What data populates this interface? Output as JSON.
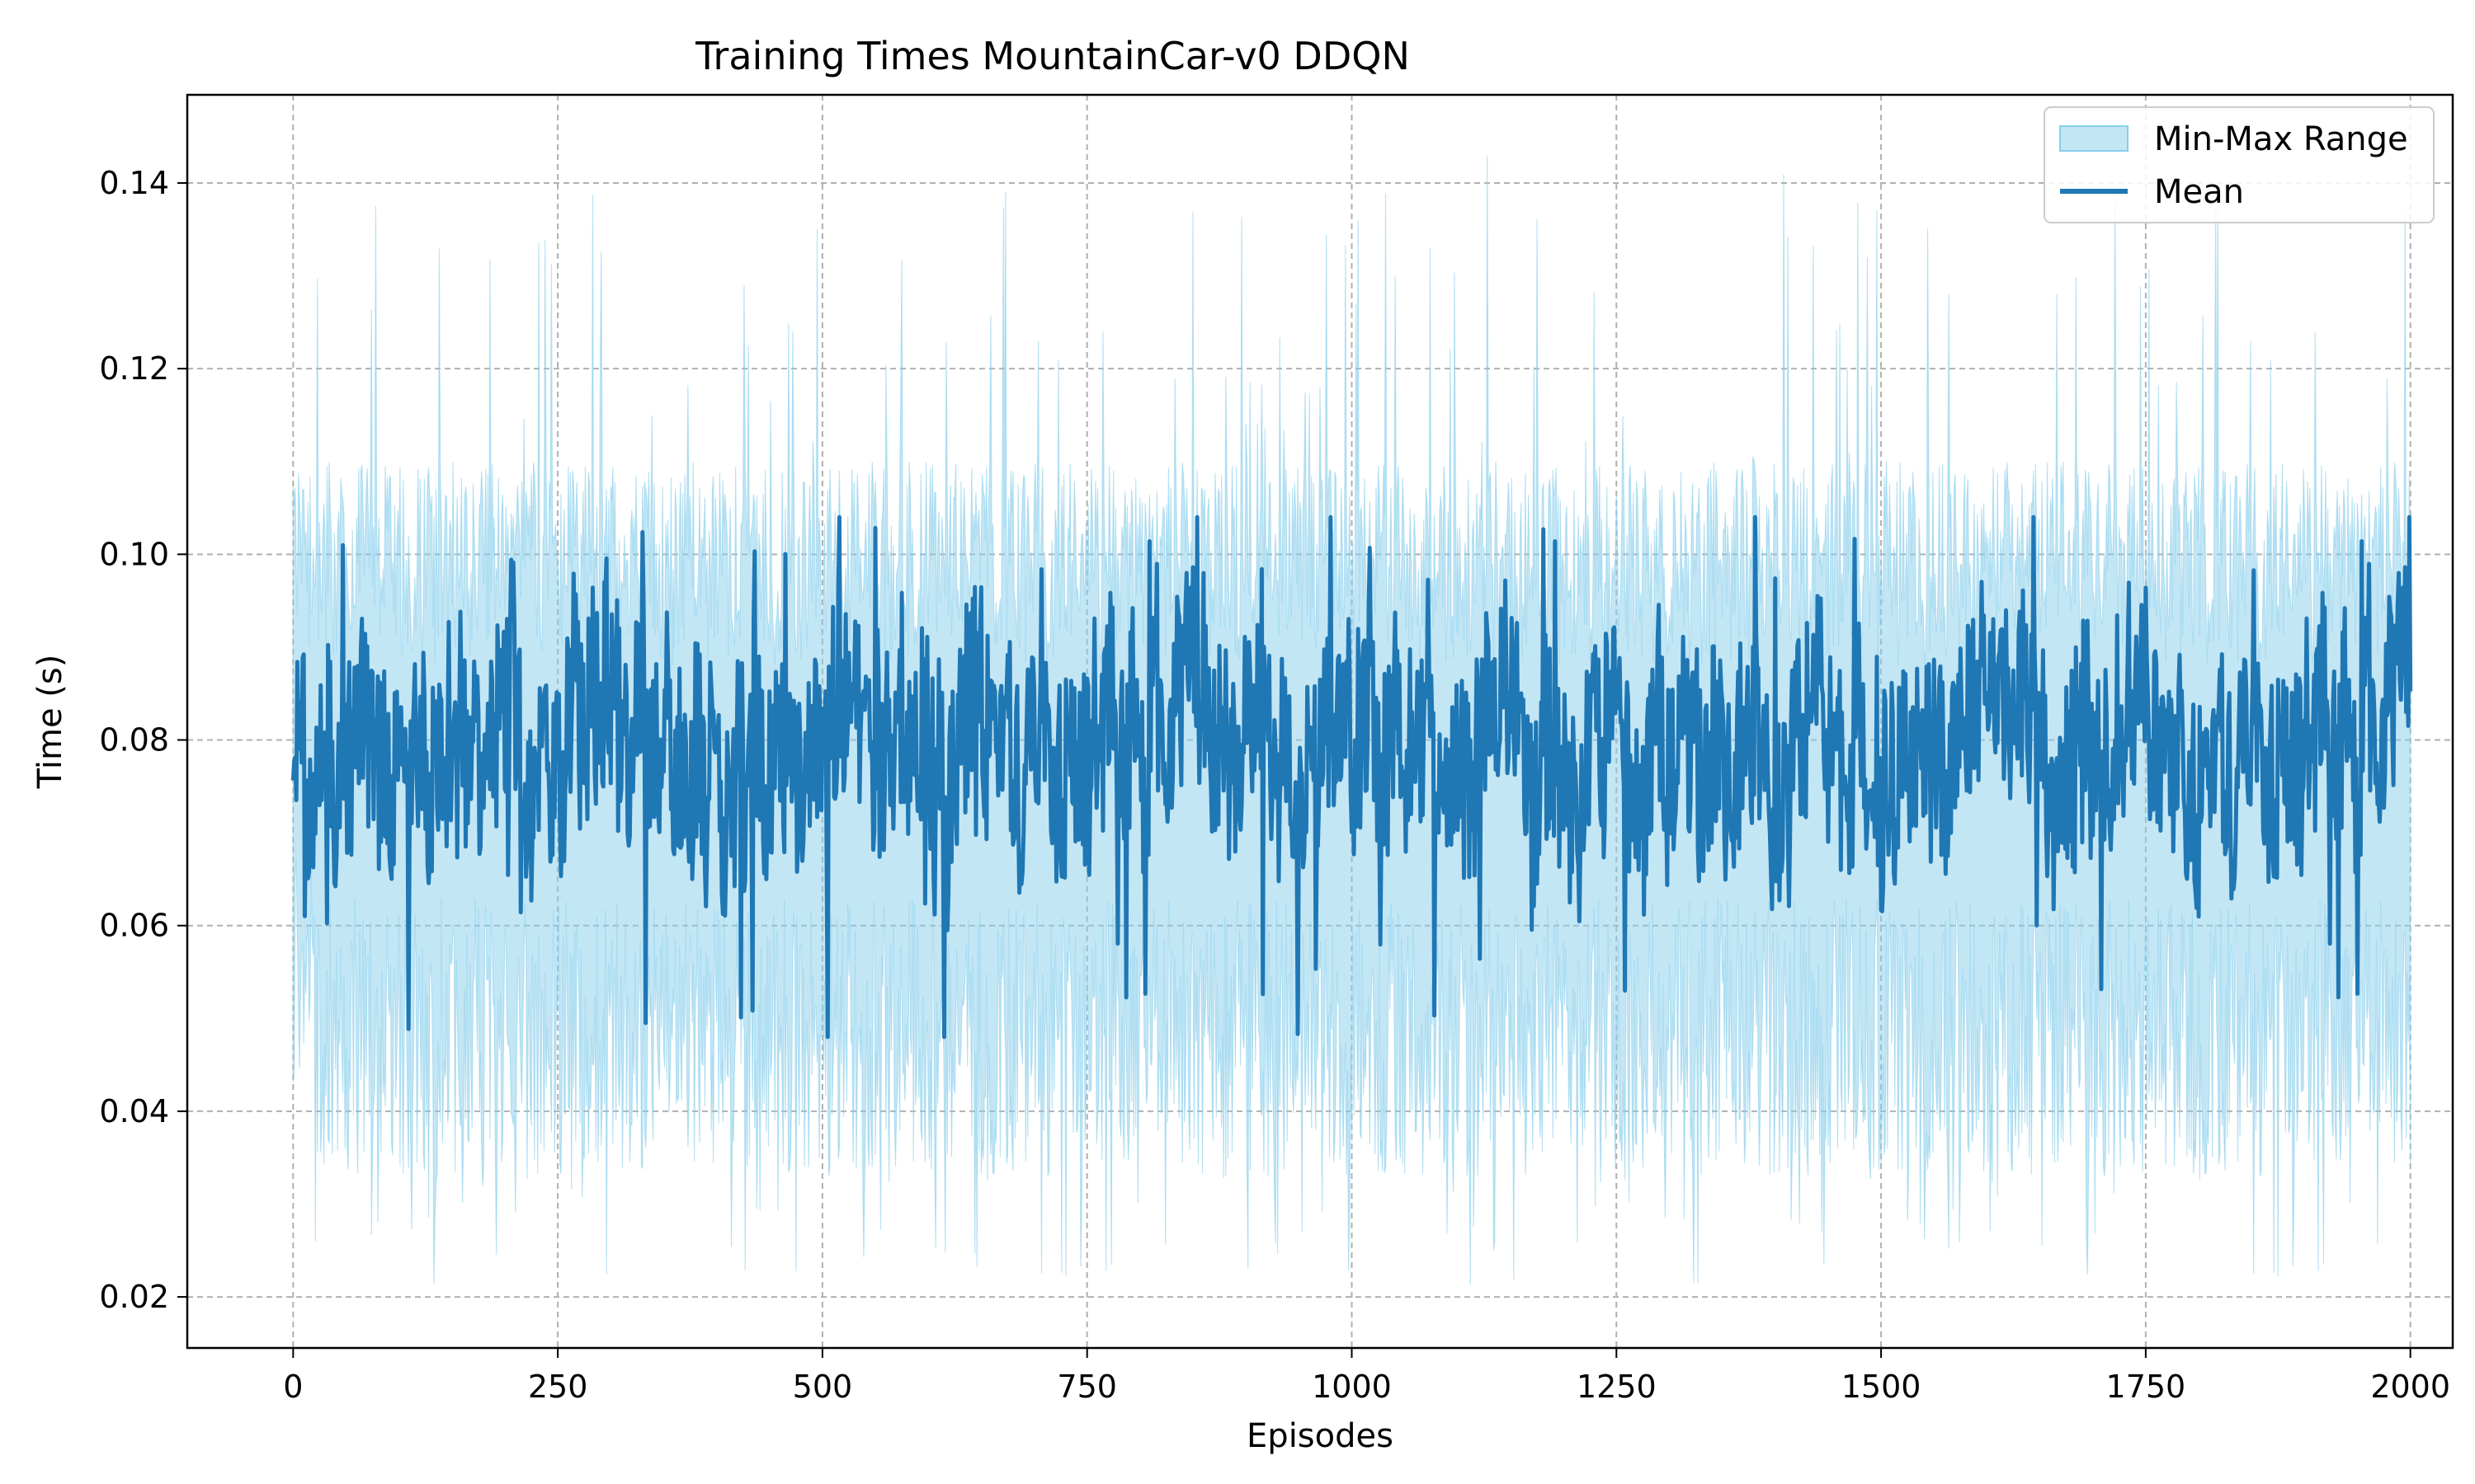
{
  "chart_data": {
    "type": "line",
    "title": "Training Times MountainCar-v0 DDQN",
    "xlabel": "Episodes",
    "ylabel": "Time (s)",
    "xlim": [
      -100,
      2040
    ],
    "ylim": [
      0.0145,
      0.1495
    ],
    "xticks": [
      0,
      250,
      500,
      750,
      1000,
      1250,
      1500,
      1750,
      2000
    ],
    "xtick_labels": [
      "0",
      "250",
      "500",
      "750",
      "1000",
      "1250",
      "1500",
      "1750",
      "2000"
    ],
    "yticks": [
      0.02,
      0.04,
      0.06,
      0.08,
      0.1,
      0.12,
      0.14
    ],
    "ytick_labels": [
      "0.02",
      "0.04",
      "0.06",
      "0.08",
      "0.10",
      "0.12",
      "0.14"
    ],
    "grid": true,
    "legend_position": "top-right",
    "series": [
      {
        "name": "Min-Max Range",
        "kind": "band",
        "color": "#87ceeb",
        "description_value_ranges": {
          "min_typical": [
            0.033,
            0.06
          ],
          "max_typical": [
            0.09,
            0.11
          ]
        },
        "episodes_range": [
          0,
          2000
        ],
        "min_values": [
          0.041,
          0.038,
          0.036,
          0.035,
          0.037,
          0.034,
          0.036,
          0.034,
          0.033,
          0.035,
          0.036,
          0.023,
          0.034,
          0.034,
          0.033,
          0.021,
          0.035,
          0.033,
          0.026,
          0.036,
          0.034,
          0.035,
          0.033,
          0.034,
          0.036,
          0.034,
          0.028,
          0.034,
          0.034,
          0.035,
          0.033,
          0.034,
          0.034,
          0.035,
          0.025,
          0.034,
          0.033,
          0.026,
          0.034,
          0.034,
          0.035,
          0.034,
          0.033,
          0.034,
          0.034,
          0.035,
          0.033,
          0.034,
          0.034,
          0.032,
          0.035,
          0.034,
          0.029,
          0.034,
          0.034,
          0.033,
          0.034,
          0.035,
          0.036,
          0.034,
          0.035,
          0.034,
          0.033,
          0.034,
          0.035,
          0.034,
          0.034,
          0.024,
          0.034,
          0.034,
          0.033,
          0.034,
          0.034,
          0.035,
          0.022,
          0.034,
          0.034,
          0.034,
          0.034,
          0.035,
          0.034,
          0.034,
          0.034,
          0.035,
          0.034,
          0.034,
          0.034,
          0.033,
          0.034,
          0.035,
          0.034,
          0.034,
          0.034,
          0.028,
          0.034,
          0.034,
          0.034,
          0.035,
          0.034,
          0.034,
          0.034,
          0.034,
          0.034,
          0.035,
          0.034,
          0.034,
          0.034,
          0.034,
          0.034,
          0.035,
          0.034,
          0.034,
          0.034,
          0.034,
          0.034,
          0.035,
          0.034,
          0.034,
          0.034,
          0.034,
          0.034,
          0.026,
          0.034,
          0.034,
          0.034,
          0.034,
          0.034,
          0.033,
          0.034,
          0.035,
          0.034,
          0.034,
          0.034,
          0.034,
          0.034,
          0.035,
          0.034,
          0.034,
          0.034,
          0.034,
          0.034,
          0.035,
          0.034,
          0.029,
          0.034,
          0.034,
          0.034,
          0.024,
          0.034,
          0.034,
          0.034,
          0.035,
          0.034,
          0.034,
          0.034,
          0.034,
          0.034,
          0.035,
          0.034,
          0.034,
          0.034,
          0.034,
          0.034,
          0.035,
          0.034,
          0.034,
          0.034,
          0.034,
          0.034,
          0.035,
          0.034,
          0.034,
          0.034,
          0.034,
          0.034,
          0.035,
          0.034,
          0.034,
          0.034,
          0.025,
          0.034,
          0.035,
          0.034,
          0.034,
          0.034,
          0.034,
          0.034,
          0.035,
          0.034,
          0.034,
          0.034,
          0.034,
          0.034,
          0.035,
          0.034,
          0.034,
          0.034,
          0.034,
          0.034,
          0.035,
          0.034,
          0.034,
          0.034,
          0.034,
          0.034,
          0.035,
          0.034,
          0.034,
          0.034,
          0.034,
          0.034,
          0.035,
          0.034,
          0.034,
          0.034,
          0.034,
          0.034,
          0.035,
          0.034,
          0.034,
          0.034,
          0.034,
          0.034,
          0.035,
          0.034,
          0.034,
          0.034,
          0.034,
          0.034,
          0.035,
          0.034,
          0.034,
          0.034,
          0.033,
          0.034,
          0.035,
          0.034,
          0.034,
          0.034,
          0.034,
          0.034,
          0.035,
          0.034,
          0.034,
          0.034,
          0.034,
          0.034,
          0.024,
          0.034,
          0.034,
          0.034,
          0.034,
          0.034,
          0.035,
          0.034,
          0.034,
          0.034,
          0.034,
          0.034,
          0.035,
          0.034,
          0.034,
          0.034,
          0.034,
          0.034,
          0.035,
          0.034,
          0.034,
          0.034,
          0.034,
          0.034,
          0.035,
          0.034,
          0.034,
          0.034,
          0.034,
          0.034,
          0.035,
          0.034,
          0.034,
          0.034,
          0.034,
          0.034,
          0.035,
          0.034,
          0.034,
          0.034,
          0.034,
          0.034,
          0.035,
          0.034,
          0.034,
          0.034,
          0.034,
          0.034,
          0.035,
          0.034,
          0.034,
          0.034,
          0.034,
          0.034,
          0.035,
          0.034,
          0.034,
          0.034,
          0.034,
          0.034,
          0.035,
          0.034,
          0.034,
          0.034,
          0.034,
          0.034,
          0.035,
          0.034,
          0.034,
          0.034,
          0.034,
          0.034,
          0.035,
          0.034,
          0.034,
          0.024,
          0.034,
          0.034,
          0.035,
          0.034,
          0.034,
          0.034,
          0.034,
          0.034,
          0.035,
          0.034,
          0.034,
          0.034,
          0.034,
          0.034,
          0.035,
          0.034,
          0.034,
          0.034,
          0.034,
          0.034,
          0.035,
          0.034,
          0.034,
          0.034,
          0.034,
          0.034,
          0.035,
          0.034,
          0.034,
          0.034,
          0.034,
          0.034,
          0.035,
          0.034,
          0.034,
          0.034,
          0.034,
          0.034,
          0.035,
          0.034,
          0.034,
          0.034,
          0.034,
          0.034,
          0.035,
          0.034,
          0.034,
          0.034,
          0.034,
          0.034,
          0.035,
          0.034,
          0.034,
          0.034,
          0.034,
          0.034,
          0.035,
          0.034,
          0.034,
          0.034,
          0.034,
          0.034,
          0.035,
          0.034,
          0.034,
          0.034,
          0.034,
          0.034,
          0.035,
          0.034,
          0.034,
          0.034,
          0.034,
          0.034,
          0.035,
          0.034,
          0.034,
          0.034,
          0.034,
          0.034,
          0.035,
          0.034,
          0.034,
          0.034,
          0.034,
          0.034,
          0.035,
          0.034,
          0.034,
          0.034,
          0.034,
          0.034,
          0.035,
          0.034,
          0.034,
          0.034,
          0.034,
          0.034,
          0.035,
          0.034,
          0.034,
          0.034,
          0.034,
          0.034,
          0.035,
          0.034,
          0.034,
          0.034,
          0.034,
          0.034,
          0.035,
          0.034,
          0.034,
          0.034,
          0.034,
          0.034,
          0.035,
          0.034,
          0.034,
          0.034,
          0.034,
          0.034,
          0.035,
          0.034,
          0.034,
          0.034,
          0.034,
          0.034,
          0.035,
          0.034,
          0.034
        ]
      },
      {
        "name": "Mean",
        "kind": "line",
        "color": "#1f77b4",
        "typical_range": [
          0.06,
          0.095
        ]
      }
    ]
  }
}
